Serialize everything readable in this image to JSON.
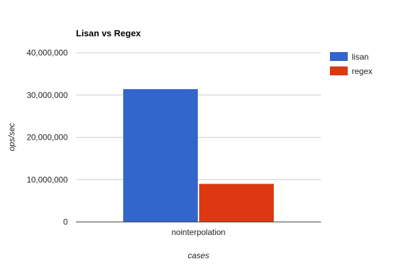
{
  "chart_data": {
    "type": "bar",
    "title": "Lisan vs Regex",
    "xlabel": "cases",
    "ylabel": "ops/sec",
    "categories": [
      "nointerpolation"
    ],
    "series": [
      {
        "name": "lisan",
        "values": [
          31400000
        ],
        "color": "#3366cc"
      },
      {
        "name": "regex",
        "values": [
          9000000
        ],
        "color": "#dc3912"
      }
    ],
    "ylim": [
      0,
      40000000
    ],
    "yticks": [
      0,
      10000000,
      20000000,
      30000000,
      40000000
    ],
    "ytick_labels": [
      "0",
      "10,000,000",
      "20,000,000",
      "30,000,000",
      "40,000,000"
    ],
    "grid": true,
    "legend_position": "right"
  }
}
